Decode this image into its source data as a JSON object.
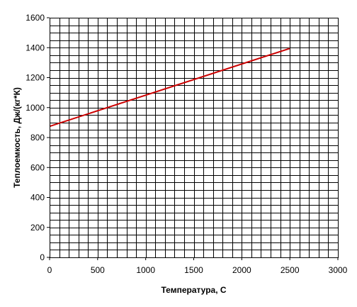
{
  "chart_data": {
    "type": "line",
    "title": "",
    "xlabel": "Температура, С",
    "ylabel": "Теплоемкость, Дж/(кг*К)",
    "xlim": [
      0,
      3000
    ],
    "ylim": [
      0,
      1600
    ],
    "x_ticks": [
      0,
      500,
      1000,
      1500,
      2000,
      2500,
      3000
    ],
    "y_ticks": [
      0,
      200,
      400,
      600,
      800,
      1000,
      1200,
      1400,
      1600
    ],
    "x_minor_step": 100,
    "y_minor_step": 50,
    "grid": true,
    "legend": "none",
    "series": [
      {
        "x": [
          0,
          2500
        ],
        "y": [
          875,
          1395
        ],
        "color": "#cc0000"
      }
    ]
  }
}
